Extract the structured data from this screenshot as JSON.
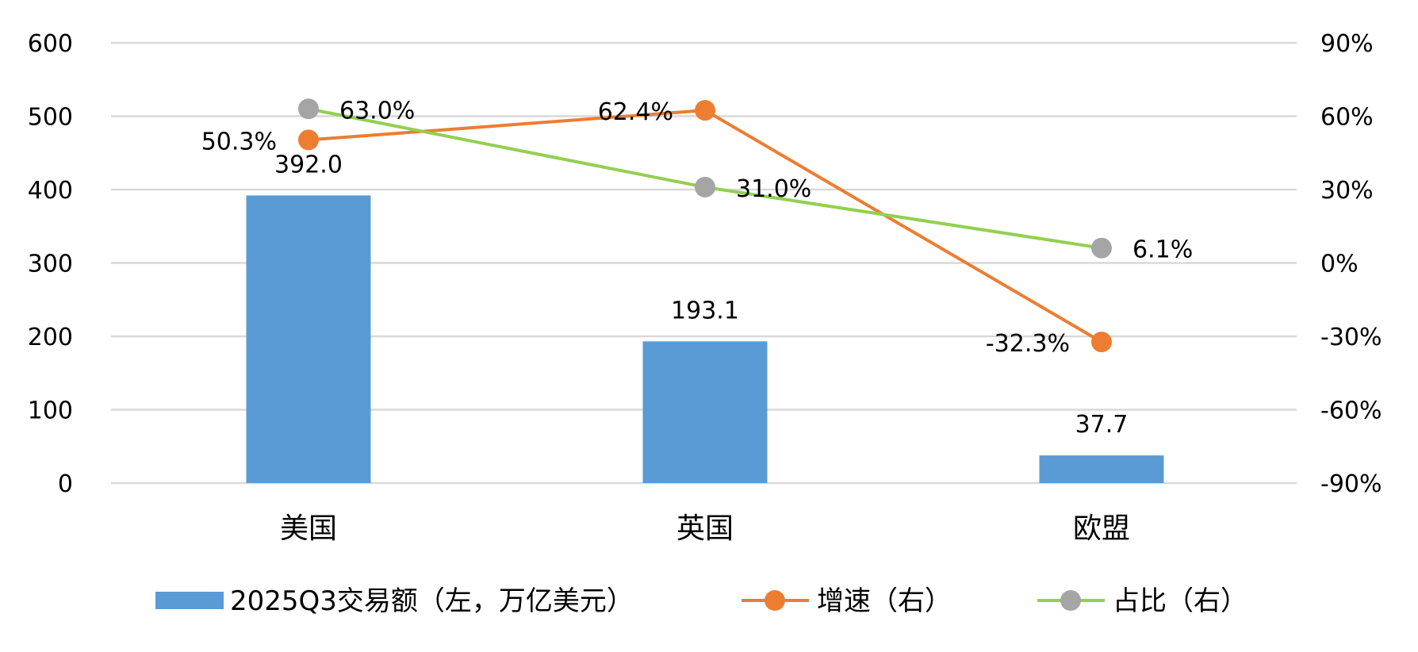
{
  "chart_data": {
    "type": "bar",
    "categories": [
      "美国",
      "英国",
      "欧盟"
    ],
    "series": [
      {
        "name": "2025Q3交易额（左，万亿美元）",
        "kind": "bar",
        "axis": "left",
        "color": "#5b9bd5",
        "values": [
          392.0,
          193.1,
          37.7
        ],
        "labels": [
          "392.0",
          "193.1",
          "37.7"
        ]
      },
      {
        "name": "增速（右）",
        "kind": "line",
        "axis": "right",
        "color": "#ed7d31",
        "values": [
          50.3,
          62.4,
          -32.3
        ],
        "labels": [
          "50.3%",
          "62.4%",
          "-32.3%"
        ]
      },
      {
        "name": "占比（右）",
        "kind": "line",
        "axis": "right",
        "marker_color": "#a5a5a5",
        "color": "#92d050",
        "values": [
          63.0,
          31.0,
          6.1
        ],
        "labels": [
          "63.0%",
          "31.0%",
          "6.1%"
        ]
      }
    ],
    "y_left": {
      "min": 0,
      "max": 600,
      "ticks": [
        "0",
        "100",
        "200",
        "300",
        "400",
        "500",
        "600"
      ]
    },
    "y_right": {
      "min": -90,
      "max": 90,
      "ticks": [
        "-90%",
        "-60%",
        "-30%",
        "0%",
        "30%",
        "60%",
        "90%"
      ]
    },
    "grid": true,
    "legend_position": "bottom",
    "gridline_color": "#d9d9d9"
  }
}
